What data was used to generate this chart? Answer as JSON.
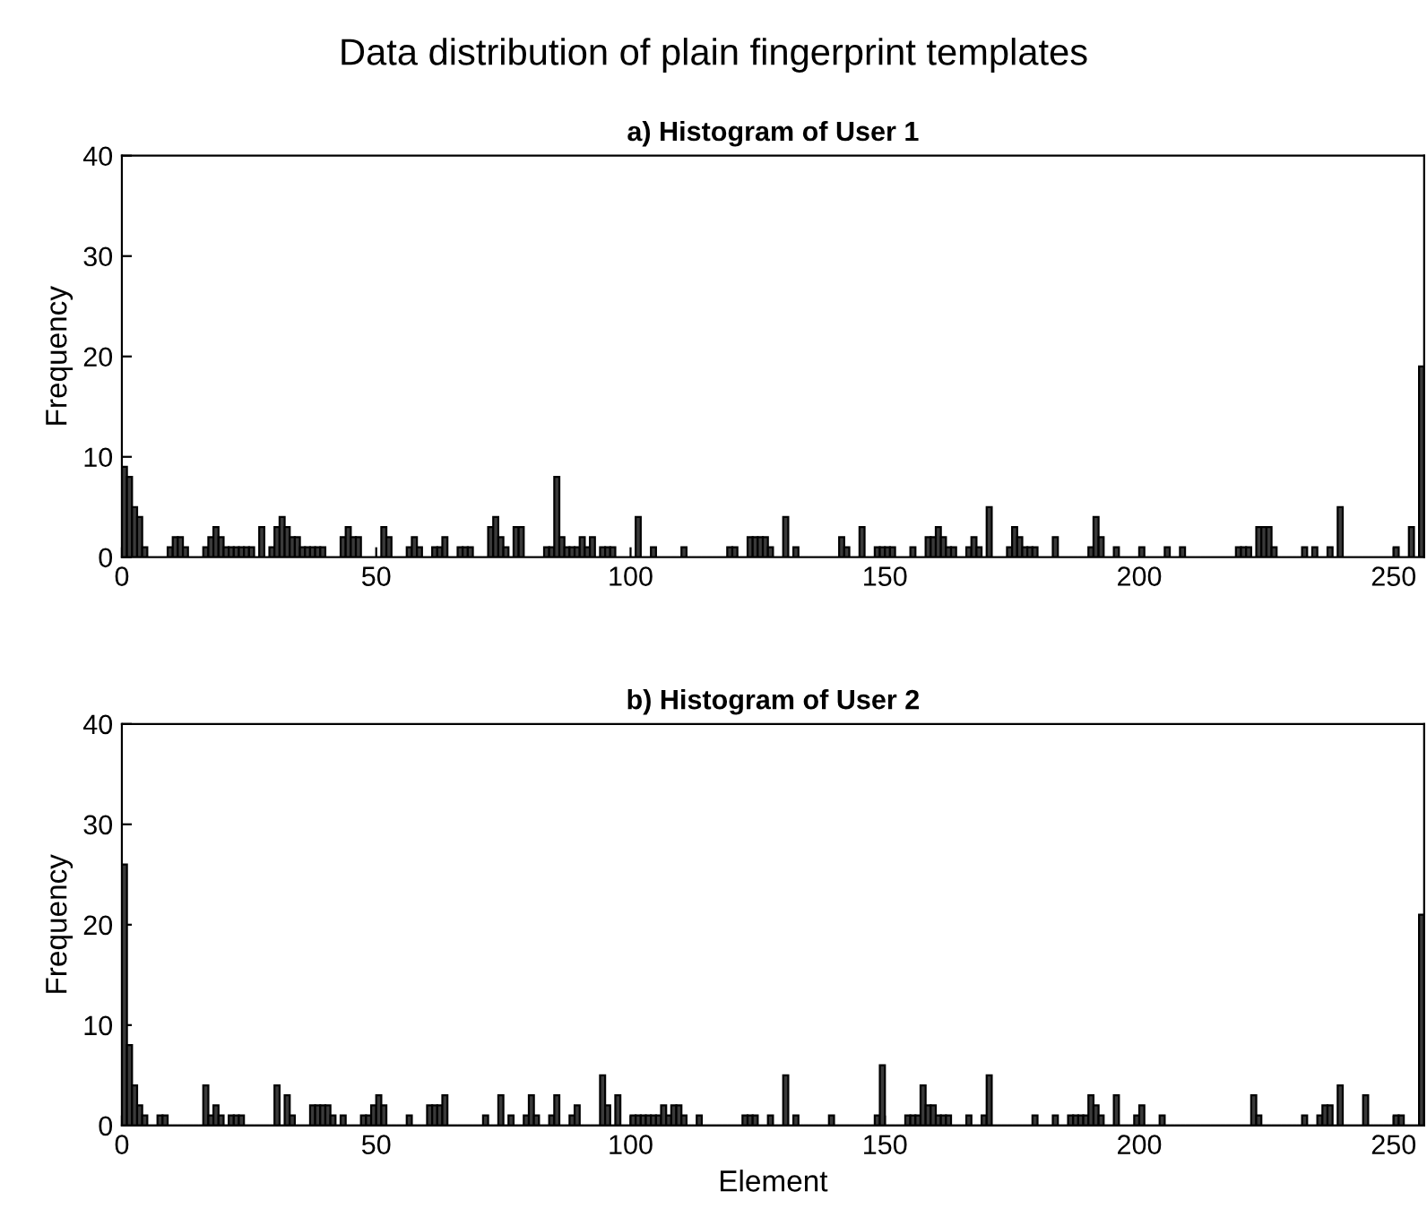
{
  "chart_data": [
    {
      "type": "histogram",
      "annotations": [
        "Data distribution of plain fingerprint templates"
      ],
      "title": "a) Histogram of User 1",
      "ylabel": "Frequency",
      "color": "#3a3a3a",
      "bins": [
        0,
        1,
        2,
        3,
        4,
        5,
        6,
        7,
        8,
        9,
        10,
        11,
        12,
        13,
        14,
        15,
        16,
        17,
        18,
        19,
        20,
        21,
        22,
        23,
        24,
        25,
        26,
        27,
        28,
        29,
        30,
        31,
        32,
        33,
        34,
        35,
        36,
        37,
        38,
        39,
        40,
        41,
        42,
        43,
        44,
        45,
        46,
        47,
        48,
        49,
        50,
        51,
        52,
        53,
        54,
        55,
        56,
        57,
        58,
        59,
        60,
        61,
        62,
        63,
        64,
        65,
        66,
        67,
        68,
        69,
        70,
        71,
        72,
        73,
        74,
        75,
        76,
        77,
        78,
        79,
        80,
        81,
        82,
        83,
        84,
        85,
        86,
        87,
        88,
        89,
        90,
        91,
        92,
        93,
        94,
        95,
        96,
        97,
        98,
        99,
        100,
        101,
        102,
        103,
        104,
        105,
        106,
        107,
        108,
        109,
        110,
        111,
        112,
        113,
        114,
        115,
        116,
        117,
        118,
        119,
        120,
        121,
        122,
        123,
        124,
        125,
        126,
        127,
        128,
        129,
        130,
        131,
        132,
        133,
        134,
        135,
        136,
        137,
        138,
        139,
        140,
        141,
        142,
        143,
        144,
        145,
        146,
        147,
        148,
        149,
        150,
        151,
        152,
        153,
        154,
        155,
        156,
        157,
        158,
        159,
        160,
        161,
        162,
        163,
        164,
        165,
        166,
        167,
        168,
        169,
        170,
        171,
        172,
        173,
        174,
        175,
        176,
        177,
        178,
        179,
        180,
        181,
        182,
        183,
        184,
        185,
        186,
        187,
        188,
        189,
        190,
        191,
        192,
        193,
        194,
        195,
        196,
        197,
        198,
        199,
        200,
        201,
        202,
        203,
        204,
        205,
        206,
        207,
        208,
        209,
        210,
        211,
        212,
        213,
        214,
        215,
        216,
        217,
        218,
        219,
        220,
        221,
        222,
        223,
        224,
        225,
        226,
        227,
        228,
        229,
        230,
        231,
        232,
        233,
        234,
        235,
        236,
        237,
        238,
        239,
        240,
        241,
        242,
        243,
        244,
        245,
        246,
        247,
        248,
        249,
        250,
        251,
        252,
        253,
        254,
        255,
        256
      ],
      "values": [
        9,
        8,
        5,
        4,
        1,
        0,
        0,
        0,
        0,
        1,
        2,
        2,
        1,
        0,
        0,
        0,
        1,
        2,
        3,
        2,
        1,
        1,
        1,
        1,
        1,
        1,
        0,
        3,
        0,
        1,
        3,
        4,
        3,
        2,
        2,
        1,
        1,
        1,
        1,
        1,
        0,
        0,
        0,
        2,
        3,
        2,
        2,
        0,
        0,
        0,
        0,
        3,
        2,
        0,
        0,
        0,
        1,
        2,
        1,
        0,
        0,
        1,
        1,
        2,
        0,
        0,
        1,
        1,
        1,
        0,
        0,
        0,
        3,
        4,
        2,
        1,
        0,
        3,
        3,
        0,
        0,
        0,
        0,
        1,
        1,
        8,
        2,
        1,
        1,
        1,
        2,
        1,
        2,
        0,
        1,
        1,
        1,
        0,
        0,
        0,
        0,
        4,
        0,
        0,
        1,
        0,
        0,
        0,
        0,
        0,
        1,
        0,
        0,
        0,
        0,
        0,
        0,
        0,
        0,
        1,
        1,
        0,
        0,
        2,
        2,
        2,
        2,
        1,
        0,
        0,
        4,
        0,
        1,
        0,
        0,
        0,
        0,
        0,
        0,
        0,
        0,
        2,
        1,
        0,
        0,
        3,
        0,
        0,
        1,
        1,
        1,
        1,
        0,
        0,
        0,
        1,
        0,
        0,
        2,
        2,
        3,
        2,
        1,
        1,
        0,
        0,
        1,
        2,
        1,
        0,
        5,
        0,
        0,
        0,
        1,
        3,
        2,
        1,
        1,
        1,
        0,
        0,
        0,
        2,
        0,
        0,
        0,
        0,
        0,
        0,
        1,
        4,
        2,
        0,
        0,
        1,
        0,
        0,
        0,
        0,
        1,
        0,
        0,
        0,
        0,
        1,
        0,
        0,
        1,
        0,
        0,
        0,
        0,
        0,
        0,
        0,
        0,
        0,
        0,
        1,
        1,
        1,
        0,
        3,
        3,
        3,
        1,
        0,
        0,
        0,
        0,
        0,
        1,
        0,
        1,
        0,
        0,
        1,
        0,
        5,
        0,
        0,
        0,
        0,
        0,
        0,
        0,
        0,
        0,
        0,
        1,
        0,
        0,
        3,
        0,
        19
      ],
      "xlim": [
        0,
        256
      ],
      "ylim": [
        0,
        40
      ],
      "xticks": [
        0,
        50,
        100,
        150,
        200,
        250
      ],
      "yticks": [
        0,
        10,
        20,
        30,
        40
      ]
    },
    {
      "type": "histogram",
      "title": "b) Histogram of User 2",
      "ylabel": "Frequency",
      "xlabel": "Element",
      "color": "#3a3a3a",
      "bins": [
        0,
        1,
        2,
        3,
        4,
        5,
        6,
        7,
        8,
        9,
        10,
        11,
        12,
        13,
        14,
        15,
        16,
        17,
        18,
        19,
        20,
        21,
        22,
        23,
        24,
        25,
        26,
        27,
        28,
        29,
        30,
        31,
        32,
        33,
        34,
        35,
        36,
        37,
        38,
        39,
        40,
        41,
        42,
        43,
        44,
        45,
        46,
        47,
        48,
        49,
        50,
        51,
        52,
        53,
        54,
        55,
        56,
        57,
        58,
        59,
        60,
        61,
        62,
        63,
        64,
        65,
        66,
        67,
        68,
        69,
        70,
        71,
        72,
        73,
        74,
        75,
        76,
        77,
        78,
        79,
        80,
        81,
        82,
        83,
        84,
        85,
        86,
        87,
        88,
        89,
        90,
        91,
        92,
        93,
        94,
        95,
        96,
        97,
        98,
        99,
        100,
        101,
        102,
        103,
        104,
        105,
        106,
        107,
        108,
        109,
        110,
        111,
        112,
        113,
        114,
        115,
        116,
        117,
        118,
        119,
        120,
        121,
        122,
        123,
        124,
        125,
        126,
        127,
        128,
        129,
        130,
        131,
        132,
        133,
        134,
        135,
        136,
        137,
        138,
        139,
        140,
        141,
        142,
        143,
        144,
        145,
        146,
        147,
        148,
        149,
        150,
        151,
        152,
        153,
        154,
        155,
        156,
        157,
        158,
        159,
        160,
        161,
        162,
        163,
        164,
        165,
        166,
        167,
        168,
        169,
        170,
        171,
        172,
        173,
        174,
        175,
        176,
        177,
        178,
        179,
        180,
        181,
        182,
        183,
        184,
        185,
        186,
        187,
        188,
        189,
        190,
        191,
        192,
        193,
        194,
        195,
        196,
        197,
        198,
        199,
        200,
        201,
        202,
        203,
        204,
        205,
        206,
        207,
        208,
        209,
        210,
        211,
        212,
        213,
        214,
        215,
        216,
        217,
        218,
        219,
        220,
        221,
        222,
        223,
        224,
        225,
        226,
        227,
        228,
        229,
        230,
        231,
        232,
        233,
        234,
        235,
        236,
        237,
        238,
        239,
        240,
        241,
        242,
        243,
        244,
        245,
        246,
        247,
        248,
        249,
        250,
        251,
        252,
        253,
        254,
        255,
        256
      ],
      "values": [
        26,
        8,
        4,
        2,
        1,
        0,
        0,
        1,
        1,
        0,
        0,
        0,
        0,
        0,
        0,
        0,
        4,
        1,
        2,
        1,
        0,
        1,
        1,
        1,
        0,
        0,
        0,
        0,
        0,
        0,
        4,
        0,
        3,
        1,
        0,
        0,
        0,
        2,
        2,
        2,
        2,
        1,
        0,
        1,
        0,
        0,
        0,
        1,
        1,
        2,
        3,
        2,
        0,
        0,
        0,
        0,
        1,
        0,
        0,
        0,
        2,
        2,
        2,
        3,
        0,
        0,
        0,
        0,
        0,
        0,
        0,
        1,
        0,
        0,
        3,
        0,
        1,
        0,
        0,
        1,
        3,
        1,
        0,
        0,
        1,
        3,
        0,
        0,
        1,
        2,
        0,
        0,
        0,
        0,
        5,
        2,
        0,
        3,
        0,
        0,
        1,
        1,
        1,
        1,
        1,
        1,
        2,
        1,
        2,
        2,
        1,
        0,
        0,
        1,
        0,
        0,
        0,
        0,
        0,
        0,
        0,
        0,
        1,
        1,
        1,
        0,
        0,
        1,
        0,
        0,
        5,
        0,
        1,
        0,
        0,
        0,
        0,
        0,
        0,
        1,
        0,
        0,
        0,
        0,
        0,
        0,
        0,
        0,
        1,
        6,
        0,
        0,
        0,
        0,
        1,
        1,
        1,
        4,
        2,
        2,
        1,
        1,
        1,
        0,
        0,
        0,
        1,
        0,
        0,
        1,
        5,
        0,
        0,
        0,
        0,
        0,
        0,
        0,
        0,
        1,
        0,
        0,
        0,
        1,
        0,
        0,
        1,
        1,
        1,
        1,
        3,
        2,
        1,
        0,
        0,
        3,
        0,
        0,
        0,
        1,
        2,
        0,
        0,
        0,
        1,
        0,
        0,
        0,
        0,
        0,
        0,
        0,
        0,
        0,
        0,
        0,
        0,
        0,
        0,
        0,
        0,
        0,
        3,
        1,
        0,
        0,
        0,
        0,
        0,
        0,
        0,
        0,
        1,
        0,
        0,
        1,
        2,
        2,
        0,
        4,
        0,
        0,
        0,
        0,
        3,
        0,
        0,
        0,
        0,
        0,
        1,
        1,
        0,
        0,
        0,
        21
      ],
      "xlim": [
        0,
        256
      ],
      "ylim": [
        0,
        40
      ],
      "xticks": [
        0,
        50,
        100,
        150,
        200,
        250
      ],
      "yticks": [
        0,
        10,
        20,
        30,
        40
      ]
    }
  ]
}
